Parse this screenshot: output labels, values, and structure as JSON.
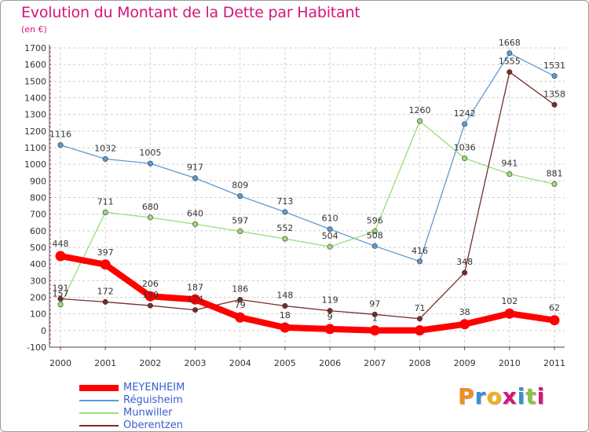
{
  "title": "Evolution du Montant de la Dette par Habitant",
  "subtitle": "(en €)",
  "brand": {
    "text": "Proxiti",
    "colors": [
      "#f28c1e",
      "#3a8fd6",
      "#f2b01e",
      "#d4147a",
      "#3a8fd6",
      "#8bc34a",
      "#d4147a"
    ]
  },
  "chart_data": {
    "type": "line",
    "categories": [
      "2000",
      "2001",
      "2002",
      "2003",
      "2004",
      "2005",
      "2006",
      "2007",
      "2008",
      "2009",
      "2010",
      "2011"
    ],
    "ylim": [
      -100,
      1700
    ],
    "yticks": [
      "-100",
      "0",
      "100",
      "200",
      "300",
      "400",
      "500",
      "600",
      "700",
      "800",
      "900",
      "1000",
      "1100",
      "1200",
      "1300",
      "1400",
      "1500",
      "1600",
      "1700"
    ],
    "grid": true,
    "legend_position": "bottom-left",
    "series": [
      {
        "name": "MEYENHEIM",
        "color": "#ff0000",
        "values": [
          448,
          397,
          206,
          187,
          79,
          18,
          9,
          1,
          1,
          38,
          102,
          62
        ],
        "labels": [
          "448",
          "397",
          "206",
          "187",
          "79",
          "18",
          "9",
          "1",
          "",
          "38",
          "102",
          "62"
        ]
      },
      {
        "name": "Réguisheim",
        "color": "#5b9bd5",
        "values": [
          1116,
          1032,
          1005,
          917,
          809,
          713,
          610,
          508,
          416,
          1242,
          1668,
          1531
        ],
        "labels": [
          "1116",
          "1032",
          "1005",
          "917",
          "809",
          "713",
          "610",
          "508",
          "416",
          "1242",
          "1668",
          "1531"
        ]
      },
      {
        "name": "Munwiller",
        "color": "#99dd77",
        "values": [
          157,
          711,
          680,
          640,
          597,
          552,
          504,
          596,
          1260,
          1036,
          941,
          881
        ],
        "labels": [
          "157",
          "711",
          "680",
          "640",
          "597",
          "552",
          "504",
          "596",
          "1260",
          "1036",
          "941",
          "881"
        ]
      },
      {
        "name": "Oberentzen",
        "color": "#7b2b2b",
        "values": [
          191,
          172,
          150,
          124,
          186,
          148,
          119,
          97,
          71,
          348,
          1555,
          1358
        ],
        "labels": [
          "191",
          "172",
          "150",
          "124",
          "186",
          "148",
          "119",
          "97",
          "71",
          "348",
          "1555",
          "1358"
        ]
      }
    ]
  }
}
